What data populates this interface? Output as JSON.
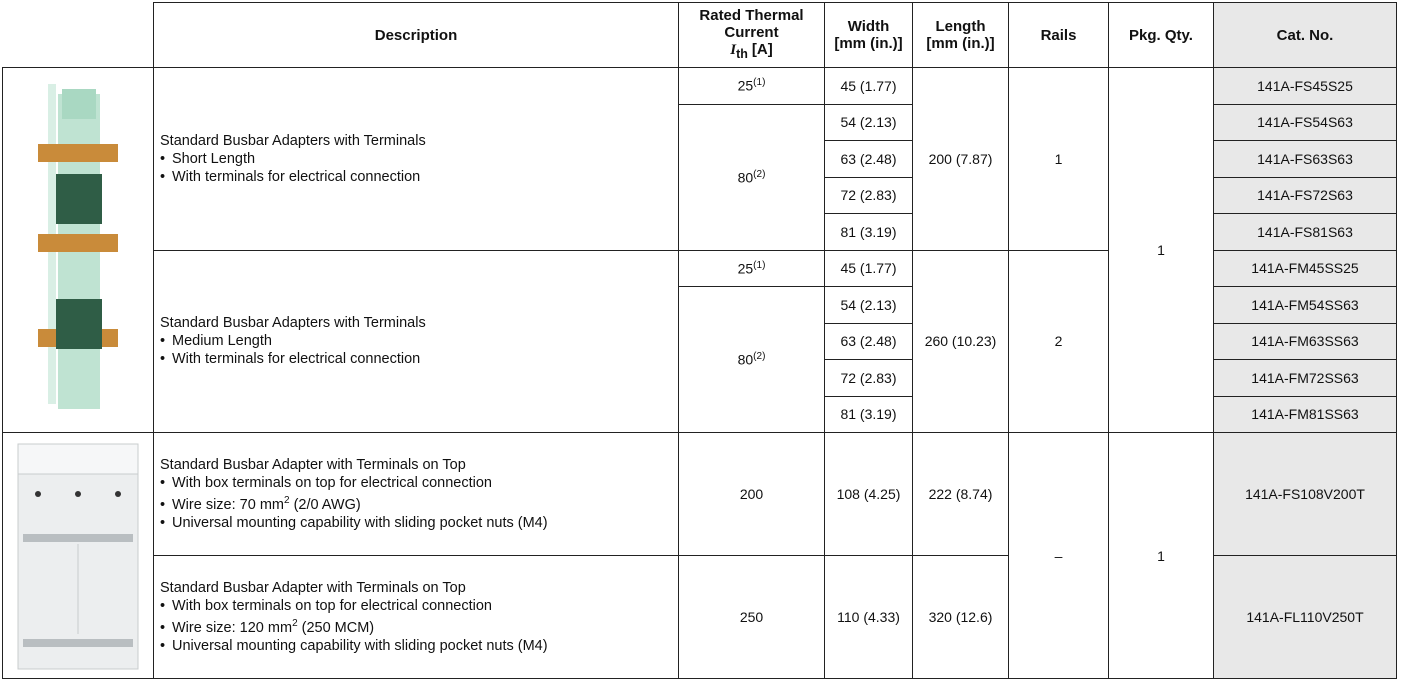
{
  "table": {
    "headers": {
      "description": "Description",
      "current": {
        "text": "Rated Thermal Current",
        "symbol": "I",
        "subscript": "th",
        "unit": "[A]"
      },
      "width": {
        "text": "Width",
        "unit": "[mm (in.)]"
      },
      "length": {
        "text": "Length",
        "unit": "[mm (in.)]"
      },
      "rails": "Rails",
      "pkg_qty": "Pkg. Qty.",
      "cat_no": "Cat. No."
    },
    "sections": [
      {
        "pkg_qty": "1",
        "groups": [
          {
            "title": "Standard Busbar Adapters with Terminals",
            "bullets": [
              "Short Length",
              "With terminals for electrical connection"
            ],
            "length": "200 (7.87)",
            "rails": "1",
            "currents": [
              {
                "value": "25",
                "note": "(1)",
                "items": [
                  {
                    "width": "45 (1.77)",
                    "cat_no": "141A-FS45S25"
                  }
                ]
              },
              {
                "value": "80",
                "note": "(2)",
                "items": [
                  {
                    "width": "54 (2.13)",
                    "cat_no": "141A-FS54S63"
                  },
                  {
                    "width": "63 (2.48)",
                    "cat_no": "141A-FS63S63"
                  },
                  {
                    "width": "72 (2.83)",
                    "cat_no": "141A-FS72S63"
                  },
                  {
                    "width": "81 (3.19)",
                    "cat_no": "141A-FS81S63"
                  }
                ]
              }
            ]
          },
          {
            "title": "Standard Busbar Adapters with Terminals",
            "bullets": [
              "Medium Length",
              "With terminals for electrical connection"
            ],
            "length": "260 (10.23)",
            "rails": "2",
            "currents": [
              {
                "value": "25",
                "note": "(1)",
                "items": [
                  {
                    "width": "45 (1.77)",
                    "cat_no": "141A-FM45SS25"
                  }
                ]
              },
              {
                "value": "80",
                "note": "(2)",
                "items": [
                  {
                    "width": "54 (2.13)",
                    "cat_no": "141A-FM54SS63"
                  },
                  {
                    "width": "63 (2.48)",
                    "cat_no": "141A-FM63SS63"
                  },
                  {
                    "width": "72 (2.83)",
                    "cat_no": "141A-FM72SS63"
                  },
                  {
                    "width": "81 (3.19)",
                    "cat_no": "141A-FM81SS63"
                  }
                ]
              }
            ]
          }
        ]
      },
      {
        "pkg_qty": "1",
        "rails": "–",
        "groups": [
          {
            "title": "Standard Busbar Adapter with Terminals on Top",
            "bullets": [
              "With box terminals on top for electrical connection",
              {
                "text": "Wire size: 70 mm",
                "sup": "2",
                "after": "(2/0 AWG)"
              },
              "Universal mounting capability with sliding pocket nuts (M4)"
            ],
            "length": "222 (8.74)",
            "currents": [
              {
                "value": "200",
                "items": [
                  {
                    "width": "108 (4.25)",
                    "cat_no": "141A-FS108V200T"
                  }
                ]
              }
            ]
          },
          {
            "title": "Standard Busbar Adapter with Terminals on Top",
            "bullets": [
              "With box terminals on top for electrical connection",
              {
                "text": "Wire size: 120 mm",
                "sup": "2",
                "after": "(250 MCM)"
              },
              "Universal mounting capability with sliding pocket nuts (M4)"
            ],
            "length": "320 (12.6)",
            "currents": [
              {
                "value": "250",
                "items": [
                  {
                    "width": "110 (4.33)",
                    "cat_no": "141A-FL110V250T"
                  }
                ]
              }
            ]
          }
        ]
      }
    ]
  }
}
